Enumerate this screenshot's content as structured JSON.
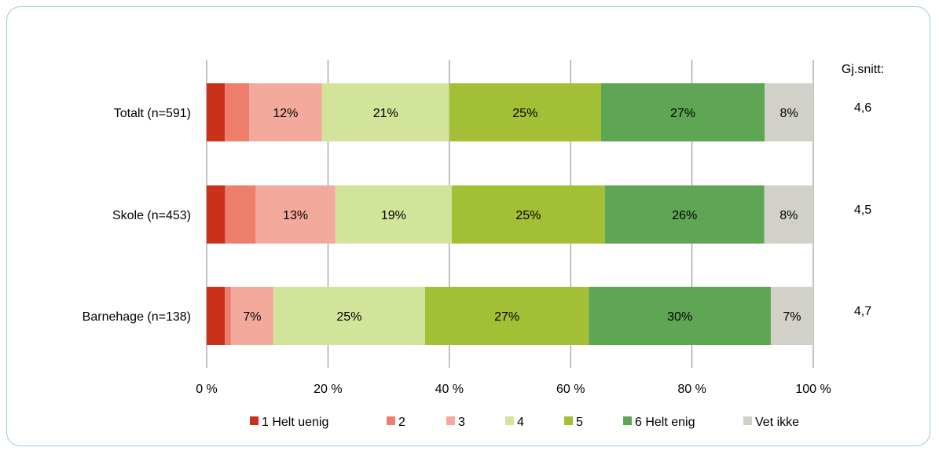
{
  "chart_data": {
    "type": "bar",
    "orientation": "horizontal",
    "stacked": "percent",
    "categories": [
      "Totalt (n=591)",
      "Skole (n=453)",
      "Barnehage (n=138)"
    ],
    "series": [
      {
        "name": "1 Helt uenig",
        "color": "#c9311a",
        "values": [
          3,
          3,
          3
        ],
        "labels": [
          "",
          "",
          ""
        ]
      },
      {
        "name": "2",
        "color": "#ee7e6c",
        "values": [
          4,
          5,
          1
        ],
        "labels": [
          "",
          "",
          ""
        ]
      },
      {
        "name": "3",
        "color": "#f4a99d",
        "values": [
          12,
          13,
          7
        ],
        "labels": [
          "12%",
          "13%",
          "7%"
        ]
      },
      {
        "name": "4",
        "color": "#d2e39a",
        "values": [
          21,
          19,
          25
        ],
        "labels": [
          "21%",
          "19%",
          "25%"
        ]
      },
      {
        "name": "5",
        "color": "#a2bf35",
        "values": [
          25,
          25,
          27
        ],
        "labels": [
          "25%",
          "25%",
          "27%"
        ]
      },
      {
        "name": "6 Helt enig",
        "color": "#5ea653",
        "values": [
          27,
          26,
          30
        ],
        "labels": [
          "27%",
          "26%",
          "30%"
        ]
      },
      {
        "name": "Vet ikke",
        "color": "#d2d1c9",
        "values": [
          8,
          8,
          7
        ],
        "labels": [
          "8%",
          "8%",
          "7%"
        ]
      }
    ],
    "xlim": [
      0,
      100
    ],
    "x_ticks": [
      "0 %",
      "20 %",
      "40 %",
      "60 %",
      "80 %",
      "100 %"
    ],
    "grid": true,
    "legend": "bottom",
    "side_header": "Gj.snitt:",
    "side_values": [
      "4,6",
      "4,5",
      "4,7"
    ]
  }
}
